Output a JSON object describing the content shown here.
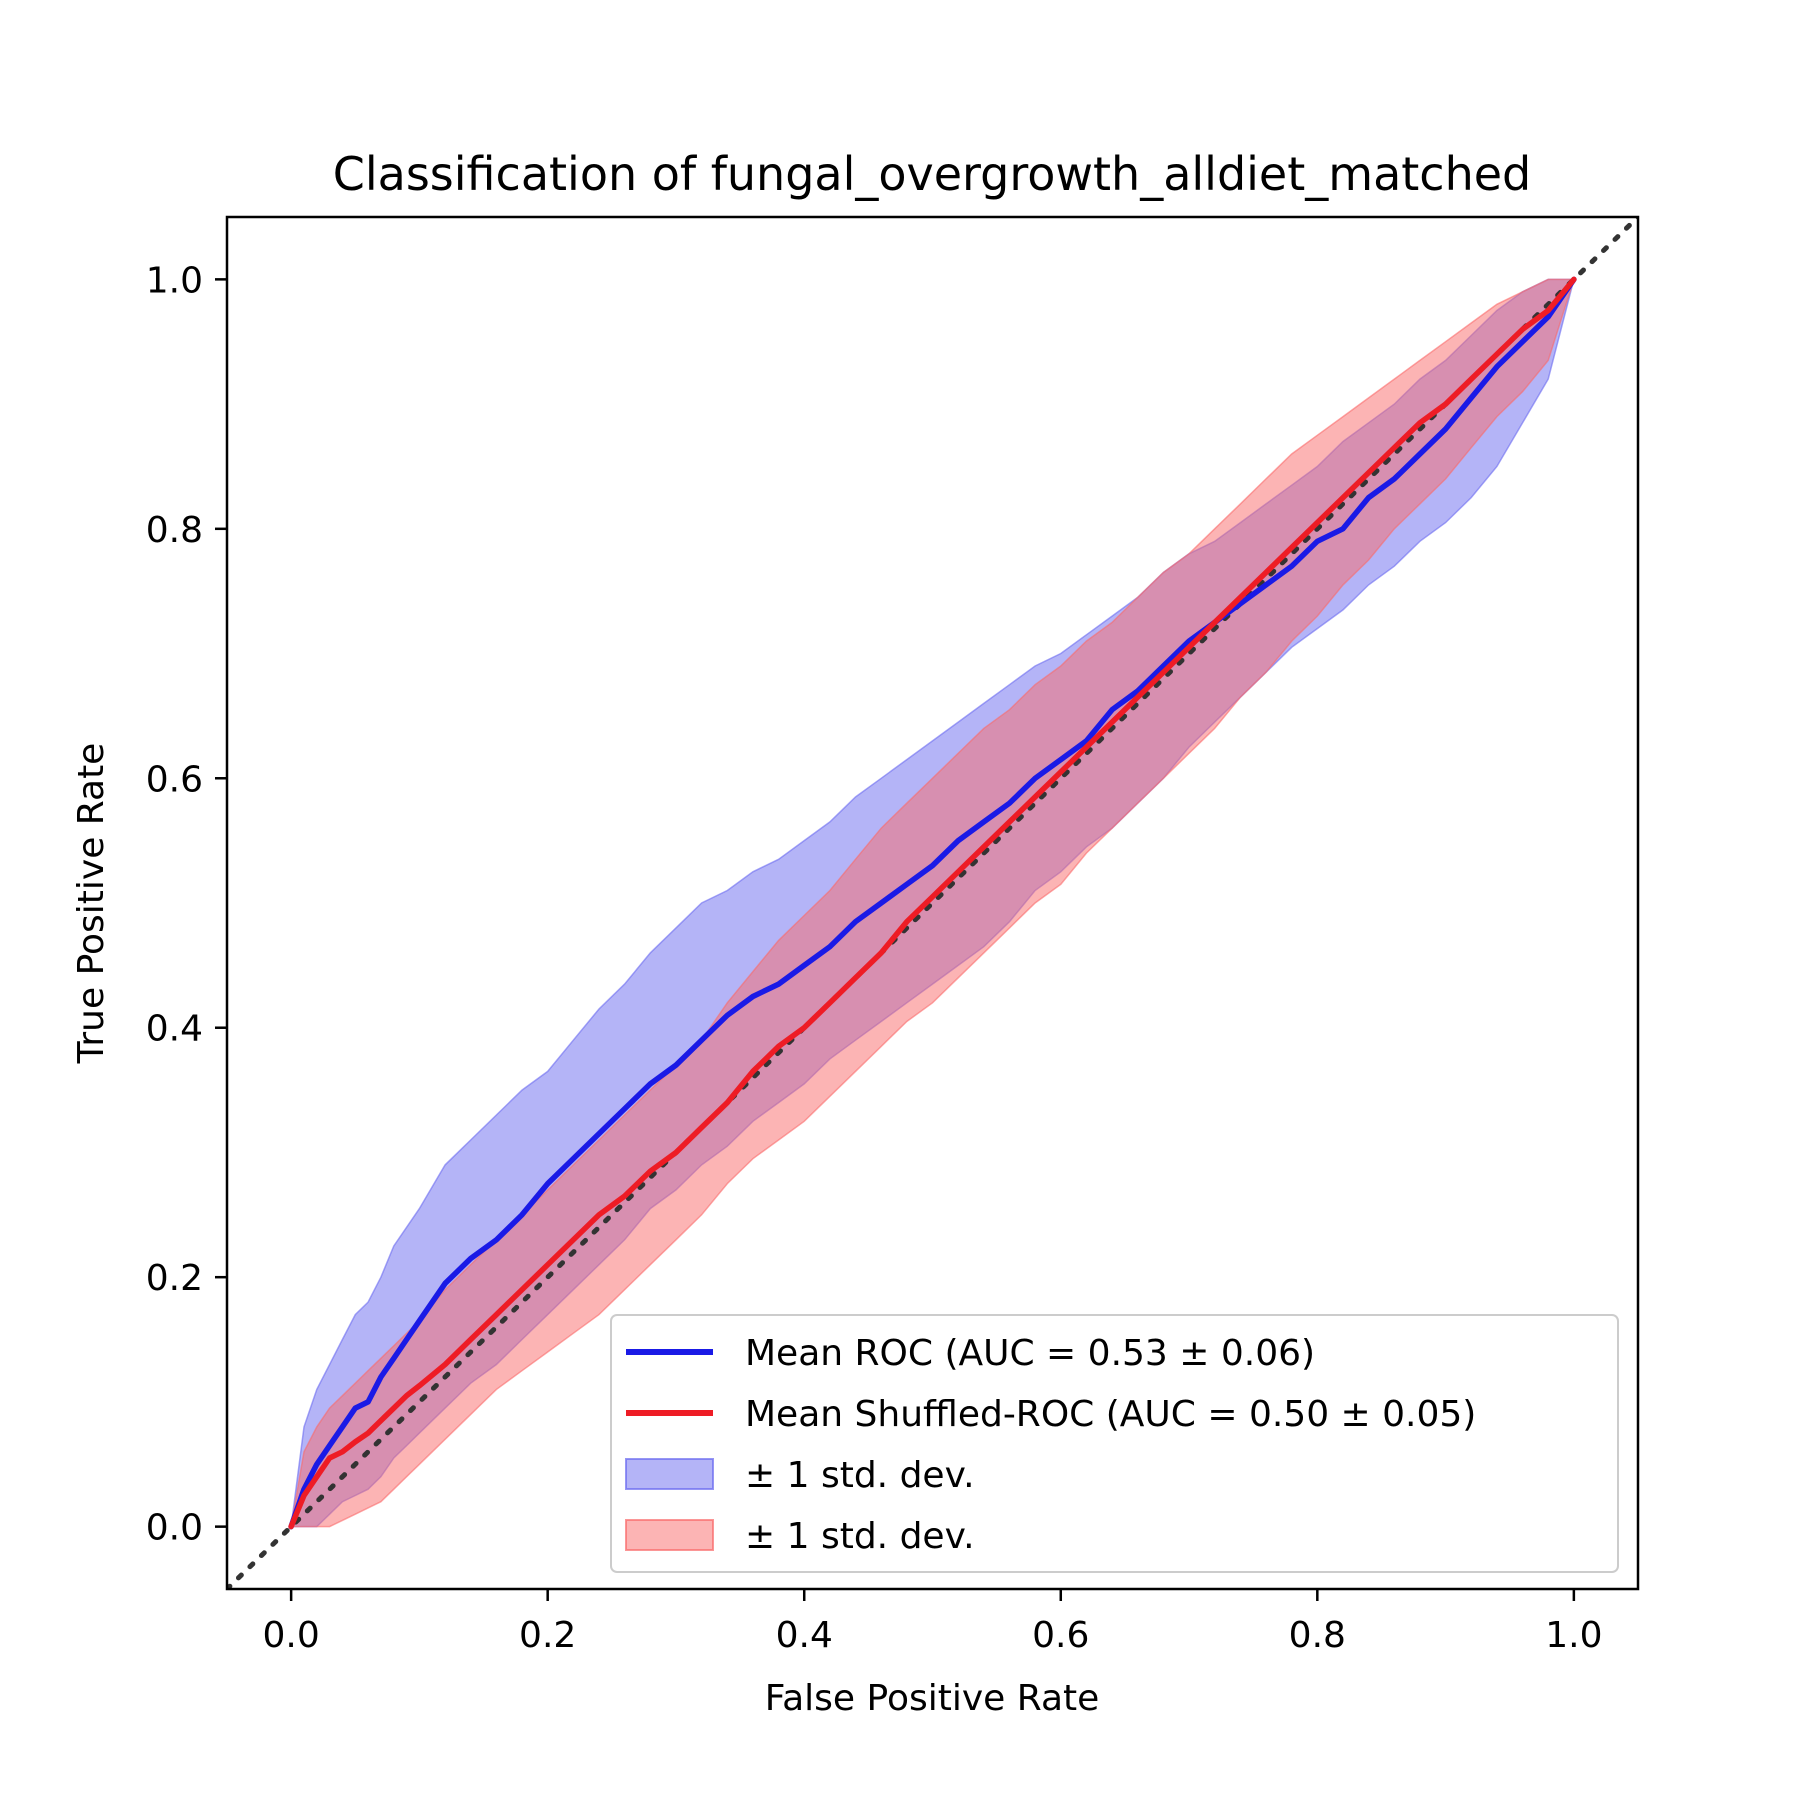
{
  "chart_data": {
    "type": "line",
    "title": "Classification of fungal_overgrowth_alldiet_matched",
    "xlabel": "False Positive Rate",
    "ylabel": "True Positive Rate",
    "xlim": [
      -0.05,
      1.05
    ],
    "ylim": [
      -0.05,
      1.05
    ],
    "x_ticks": [
      0.0,
      0.2,
      0.4,
      0.6,
      0.8,
      1.0
    ],
    "y_ticks": [
      0.0,
      0.2,
      0.4,
      0.6,
      0.8,
      1.0
    ],
    "x_tick_labels": [
      "0.0",
      "0.2",
      "0.4",
      "0.6",
      "0.8",
      "1.0"
    ],
    "y_tick_labels": [
      "0.0",
      "0.2",
      "0.4",
      "0.6",
      "0.8",
      "1.0"
    ],
    "grid": false,
    "legend_position": "lower-right",
    "chance_line": {
      "x": [
        -0.05,
        1.05
      ],
      "y": [
        -0.05,
        1.05
      ],
      "color": "#333333",
      "style": "dotted"
    },
    "series": [
      {
        "name": "Mean ROC (AUC = 0.53 ± 0.06)",
        "color": "#1a1ae6",
        "x": [
          0.0,
          0.01,
          0.02,
          0.03,
          0.04,
          0.05,
          0.06,
          0.07,
          0.08,
          0.09,
          0.1,
          0.12,
          0.14,
          0.16,
          0.18,
          0.2,
          0.22,
          0.24,
          0.26,
          0.28,
          0.3,
          0.32,
          0.34,
          0.36,
          0.38,
          0.4,
          0.42,
          0.44,
          0.46,
          0.48,
          0.5,
          0.52,
          0.54,
          0.56,
          0.58,
          0.6,
          0.62,
          0.64,
          0.66,
          0.68,
          0.7,
          0.72,
          0.74,
          0.76,
          0.78,
          0.8,
          0.82,
          0.84,
          0.86,
          0.88,
          0.9,
          0.92,
          0.94,
          0.96,
          0.98,
          1.0
        ],
        "y": [
          0.0,
          0.03,
          0.05,
          0.065,
          0.08,
          0.095,
          0.1,
          0.12,
          0.135,
          0.15,
          0.165,
          0.195,
          0.215,
          0.23,
          0.25,
          0.275,
          0.295,
          0.315,
          0.335,
          0.355,
          0.37,
          0.39,
          0.41,
          0.425,
          0.435,
          0.45,
          0.465,
          0.485,
          0.5,
          0.515,
          0.53,
          0.55,
          0.565,
          0.58,
          0.6,
          0.615,
          0.63,
          0.655,
          0.67,
          0.69,
          0.71,
          0.725,
          0.74,
          0.755,
          0.77,
          0.79,
          0.8,
          0.825,
          0.84,
          0.86,
          0.88,
          0.905,
          0.93,
          0.95,
          0.97,
          1.0
        ],
        "std_upper": [
          0.0,
          0.08,
          0.11,
          0.13,
          0.15,
          0.17,
          0.18,
          0.2,
          0.225,
          0.24,
          0.255,
          0.29,
          0.31,
          0.33,
          0.35,
          0.365,
          0.39,
          0.415,
          0.435,
          0.46,
          0.48,
          0.5,
          0.51,
          0.525,
          0.535,
          0.55,
          0.565,
          0.585,
          0.6,
          0.615,
          0.63,
          0.645,
          0.66,
          0.675,
          0.69,
          0.7,
          0.715,
          0.73,
          0.745,
          0.765,
          0.78,
          0.79,
          0.805,
          0.82,
          0.835,
          0.85,
          0.87,
          0.885,
          0.9,
          0.92,
          0.935,
          0.955,
          0.975,
          0.99,
          1.0,
          1.0
        ],
        "std_lower": [
          0.0,
          0.0,
          0.0,
          0.01,
          0.02,
          0.025,
          0.03,
          0.04,
          0.055,
          0.065,
          0.075,
          0.095,
          0.115,
          0.13,
          0.15,
          0.17,
          0.19,
          0.21,
          0.23,
          0.255,
          0.27,
          0.29,
          0.305,
          0.325,
          0.34,
          0.355,
          0.375,
          0.39,
          0.405,
          0.42,
          0.435,
          0.45,
          0.465,
          0.485,
          0.51,
          0.525,
          0.545,
          0.56,
          0.58,
          0.6,
          0.625,
          0.645,
          0.665,
          0.685,
          0.705,
          0.72,
          0.735,
          0.755,
          0.77,
          0.79,
          0.805,
          0.825,
          0.85,
          0.885,
          0.92,
          1.0
        ]
      },
      {
        "name": "Mean Shuffled-ROC (AUC = 0.50 ± 0.05)",
        "color": "#ee1c25",
        "x": [
          0.0,
          0.01,
          0.02,
          0.03,
          0.04,
          0.05,
          0.06,
          0.07,
          0.08,
          0.09,
          0.1,
          0.12,
          0.14,
          0.16,
          0.18,
          0.2,
          0.22,
          0.24,
          0.26,
          0.28,
          0.3,
          0.32,
          0.34,
          0.36,
          0.38,
          0.4,
          0.42,
          0.44,
          0.46,
          0.48,
          0.5,
          0.52,
          0.54,
          0.56,
          0.58,
          0.6,
          0.62,
          0.64,
          0.66,
          0.68,
          0.7,
          0.72,
          0.74,
          0.76,
          0.78,
          0.8,
          0.82,
          0.84,
          0.86,
          0.88,
          0.9,
          0.92,
          0.94,
          0.96,
          0.98,
          1.0
        ],
        "y": [
          0.0,
          0.025,
          0.04,
          0.055,
          0.06,
          0.068,
          0.075,
          0.085,
          0.095,
          0.105,
          0.113,
          0.13,
          0.15,
          0.17,
          0.19,
          0.21,
          0.23,
          0.25,
          0.265,
          0.285,
          0.3,
          0.32,
          0.34,
          0.365,
          0.385,
          0.4,
          0.42,
          0.44,
          0.46,
          0.485,
          0.505,
          0.525,
          0.545,
          0.565,
          0.585,
          0.605,
          0.625,
          0.645,
          0.665,
          0.685,
          0.705,
          0.725,
          0.745,
          0.765,
          0.785,
          0.805,
          0.825,
          0.845,
          0.865,
          0.885,
          0.9,
          0.92,
          0.94,
          0.96,
          0.975,
          1.0
        ],
        "std_upper": [
          0.0,
          0.06,
          0.08,
          0.095,
          0.105,
          0.115,
          0.125,
          0.135,
          0.145,
          0.155,
          0.165,
          0.19,
          0.21,
          0.23,
          0.25,
          0.27,
          0.29,
          0.31,
          0.33,
          0.35,
          0.37,
          0.39,
          0.42,
          0.445,
          0.47,
          0.49,
          0.51,
          0.535,
          0.56,
          0.58,
          0.6,
          0.62,
          0.64,
          0.655,
          0.675,
          0.69,
          0.71,
          0.725,
          0.745,
          0.765,
          0.78,
          0.8,
          0.82,
          0.84,
          0.86,
          0.875,
          0.89,
          0.905,
          0.92,
          0.935,
          0.95,
          0.965,
          0.98,
          0.99,
          1.0,
          1.0
        ],
        "std_lower": [
          0.0,
          0.0,
          0.0,
          0.0,
          0.005,
          0.01,
          0.015,
          0.02,
          0.03,
          0.04,
          0.05,
          0.07,
          0.09,
          0.11,
          0.125,
          0.14,
          0.155,
          0.17,
          0.19,
          0.21,
          0.23,
          0.25,
          0.275,
          0.295,
          0.31,
          0.325,
          0.345,
          0.365,
          0.385,
          0.405,
          0.42,
          0.44,
          0.46,
          0.48,
          0.5,
          0.515,
          0.54,
          0.56,
          0.58,
          0.6,
          0.62,
          0.64,
          0.665,
          0.685,
          0.71,
          0.73,
          0.755,
          0.775,
          0.8,
          0.82,
          0.84,
          0.865,
          0.89,
          0.91,
          0.935,
          1.0
        ]
      }
    ],
    "legend": [
      {
        "label": "Mean ROC (AUC = 0.53 ± 0.06)",
        "kind": "line",
        "color": "#1a1ae6"
      },
      {
        "label": "Mean Shuffled-ROC (AUC = 0.50 ± 0.05)",
        "kind": "line",
        "color": "#ee1c25"
      },
      {
        "label": "± 1 std. dev.",
        "kind": "patch",
        "color": "#6a6af0"
      },
      {
        "label": "± 1 std. dev.",
        "kind": "patch",
        "color": "#fa6a6a"
      }
    ]
  }
}
